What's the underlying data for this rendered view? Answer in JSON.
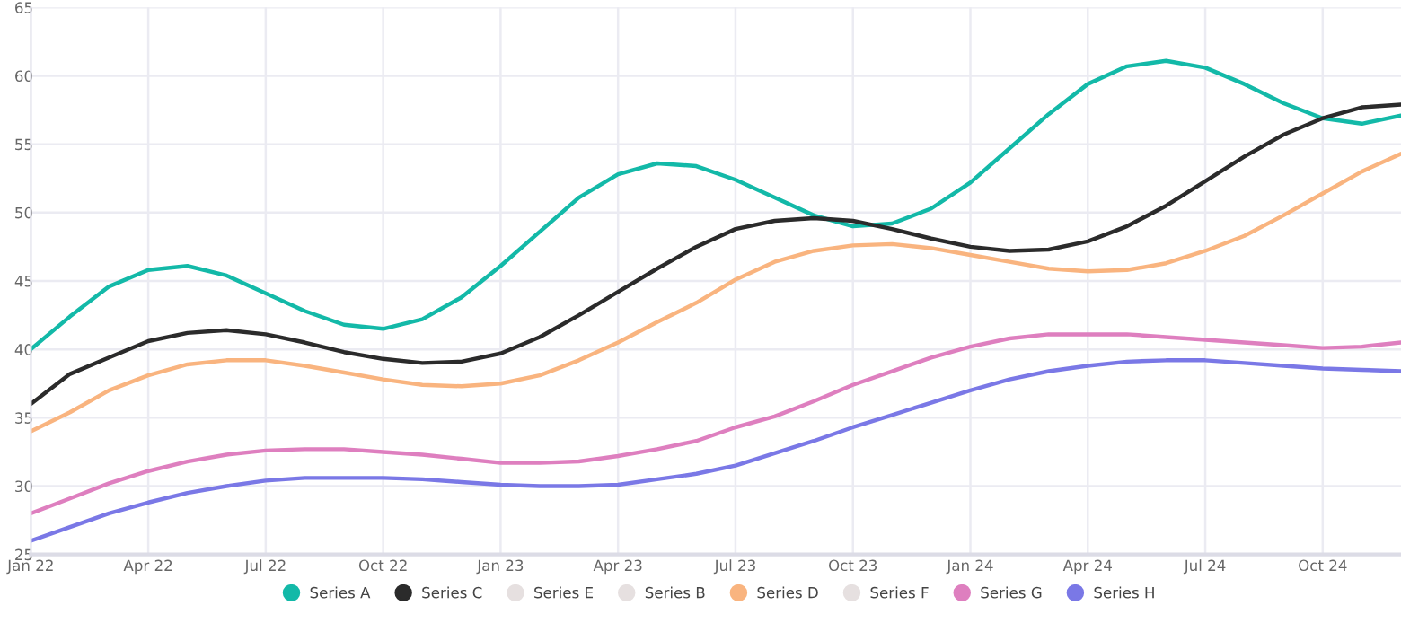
{
  "chart_data": {
    "type": "line",
    "categories": [
      "Jan 22",
      null,
      null,
      "Apr 22",
      null,
      null,
      "Jul 22",
      null,
      null,
      "Oct 22",
      null,
      null,
      "Jan 23",
      null,
      null,
      "Apr 23",
      null,
      null,
      "Jul 23",
      null,
      null,
      "Oct 23",
      null,
      null,
      "Jan 24",
      null,
      null,
      "Apr 24",
      null,
      null,
      "Jul 24",
      null,
      null,
      "Oct 24",
      null,
      null
    ],
    "ylim": [
      25,
      65
    ],
    "yticks": [
      25,
      30,
      35,
      40,
      45,
      50,
      55,
      60,
      65
    ],
    "grid": true,
    "legend": "bottom",
    "marker": "none",
    "line_style": "solid",
    "series": [
      {
        "name": "Series A",
        "color": "#13b9a8",
        "values": [
          40.0,
          42.4,
          44.6,
          45.8,
          46.1,
          45.4,
          44.1,
          42.8,
          41.8,
          41.5,
          42.2,
          43.8,
          46.1,
          48.6,
          51.1,
          52.8,
          53.6,
          53.4,
          52.4,
          51.1,
          49.8,
          49.0,
          49.2,
          50.3,
          52.2,
          54.7,
          57.2,
          59.4,
          60.7,
          61.1,
          60.6,
          59.4,
          58.0,
          56.9,
          56.5,
          57.1
        ]
      },
      {
        "name": "Series C",
        "color": "#2b2b2b",
        "values": [
          36.0,
          38.2,
          39.4,
          40.6,
          41.2,
          41.4,
          41.1,
          40.5,
          39.8,
          39.3,
          39.0,
          39.1,
          39.7,
          40.9,
          42.5,
          44.2,
          45.9,
          47.5,
          48.8,
          49.4,
          49.6,
          49.4,
          48.8,
          48.1,
          47.5,
          47.2,
          47.3,
          47.9,
          49.0,
          50.5,
          52.3,
          54.1,
          55.7,
          56.9,
          57.7,
          57.9
        ]
      },
      {
        "name": "Series E",
        "color": "#e6e0e0",
        "values": [
          null,
          null,
          null,
          null,
          null,
          null,
          null,
          null,
          null,
          null,
          null,
          null,
          null,
          null,
          null,
          null,
          null,
          null,
          null,
          null,
          null,
          null,
          null,
          null,
          null,
          null,
          null,
          null,
          null,
          null,
          null,
          null,
          null,
          null,
          null,
          null
        ]
      },
      {
        "name": "Series B",
        "color": "#e6e0e0",
        "values": [
          null,
          null,
          null,
          null,
          null,
          null,
          null,
          null,
          null,
          null,
          null,
          null,
          null,
          null,
          null,
          null,
          null,
          null,
          null,
          null,
          null,
          null,
          null,
          null,
          null,
          null,
          null,
          null,
          null,
          null,
          null,
          null,
          null,
          null,
          null,
          null
        ]
      },
      {
        "name": "Series D",
        "color": "#f9b47f",
        "values": [
          34.0,
          35.4,
          37.0,
          38.1,
          38.9,
          39.2,
          39.2,
          38.8,
          38.3,
          37.8,
          37.4,
          37.3,
          37.5,
          38.1,
          39.2,
          40.5,
          42.0,
          43.4,
          45.1,
          46.4,
          47.2,
          47.6,
          47.7,
          47.4,
          46.9,
          46.4,
          45.9,
          45.7,
          45.8,
          46.3,
          47.2,
          48.3,
          49.8,
          51.4,
          53.0,
          54.3
        ]
      },
      {
        "name": "Series F",
        "color": "#e6e0e0",
        "values": [
          null,
          null,
          null,
          null,
          null,
          null,
          null,
          null,
          null,
          null,
          null,
          null,
          null,
          null,
          null,
          null,
          null,
          null,
          null,
          null,
          null,
          null,
          null,
          null,
          null,
          null,
          null,
          null,
          null,
          null,
          null,
          null,
          null,
          null,
          null,
          null
        ]
      },
      {
        "name": "Series G",
        "color": "#de7fbf",
        "values": [
          28.0,
          29.1,
          30.2,
          31.1,
          31.8,
          32.3,
          32.6,
          32.7,
          32.7,
          32.5,
          32.3,
          32.0,
          31.7,
          31.7,
          31.8,
          32.2,
          32.7,
          33.3,
          34.3,
          35.1,
          36.2,
          37.4,
          38.4,
          39.4,
          40.2,
          40.8,
          41.1,
          41.1,
          41.1,
          40.9,
          40.7,
          40.5,
          40.3,
          40.1,
          40.2,
          40.5
        ]
      },
      {
        "name": "Series H",
        "color": "#7a78e6",
        "values": [
          26.0,
          27.0,
          28.0,
          28.8,
          29.5,
          30.0,
          30.4,
          30.6,
          30.6,
          30.6,
          30.5,
          30.3,
          30.1,
          30.0,
          30.0,
          30.1,
          30.5,
          30.9,
          31.5,
          32.4,
          33.3,
          34.3,
          35.2,
          36.1,
          37.0,
          37.8,
          38.4,
          38.8,
          39.1,
          39.2,
          39.2,
          39.0,
          38.8,
          38.6,
          38.5,
          38.4
        ]
      }
    ]
  }
}
